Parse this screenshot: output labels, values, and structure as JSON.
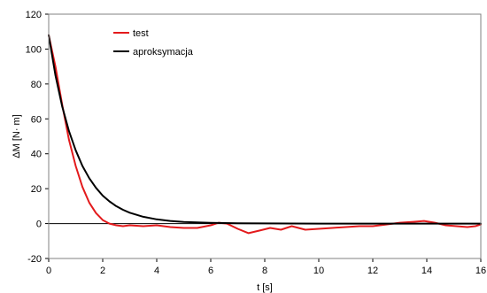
{
  "chart_data": {
    "type": "line",
    "title": "",
    "xlabel": "t  [s]",
    "ylabel": "ΔM  [N· m]",
    "xlim": [
      0,
      16
    ],
    "ylim": [
      -20,
      120
    ],
    "xticks": [
      "0",
      "2",
      "4",
      "6",
      "8",
      "10",
      "12",
      "14",
      "16"
    ],
    "yticks": [
      "120",
      "100",
      "80",
      "60",
      "40",
      "20",
      "0",
      "-20"
    ],
    "grid": false,
    "legend_position": "top-left inside",
    "series": [
      {
        "name": "test",
        "color": "#e31a1c",
        "x": [
          0,
          0.25,
          0.5,
          0.75,
          1.0,
          1.25,
          1.5,
          1.75,
          2.0,
          2.25,
          2.5,
          2.75,
          3.0,
          3.5,
          4.0,
          4.5,
          5.0,
          5.5,
          6.0,
          6.3,
          6.6,
          7.0,
          7.4,
          7.8,
          8.2,
          8.6,
          9.0,
          9.5,
          10.0,
          10.5,
          11.0,
          11.5,
          12.0,
          12.5,
          13.0,
          13.5,
          13.9,
          14.3,
          14.7,
          15.1,
          15.5,
          15.8,
          16.0
        ],
        "y": [
          108,
          90,
          68,
          48,
          33,
          21,
          12,
          6,
          2,
          0,
          -1,
          -1.5,
          -1,
          -1.5,
          -1,
          -2,
          -2.5,
          -2.5,
          -1,
          0.5,
          0,
          -3,
          -5.5,
          -4,
          -2.5,
          -3.5,
          -1.5,
          -3.5,
          -3,
          -2.5,
          -2,
          -1.5,
          -1.5,
          -0.5,
          0.5,
          1,
          1.5,
          0.5,
          -1,
          -1.5,
          -2,
          -1.5,
          -0.5
        ]
      },
      {
        "name": "aproksymacja",
        "color": "#000000",
        "x": [
          0,
          0.25,
          0.5,
          0.75,
          1.0,
          1.25,
          1.5,
          1.75,
          2.0,
          2.25,
          2.5,
          2.75,
          3.0,
          3.5,
          4.0,
          4.5,
          5.0,
          6.0,
          7.0,
          8.0,
          10.0,
          12.0,
          14.0,
          16.0
        ],
        "y": [
          108,
          85,
          67,
          53,
          42,
          33,
          26,
          20.5,
          16,
          12.7,
          10,
          7.9,
          6.2,
          3.9,
          2.4,
          1.5,
          0.9,
          0.4,
          0.2,
          0.1,
          0,
          0,
          0,
          0
        ]
      }
    ]
  }
}
